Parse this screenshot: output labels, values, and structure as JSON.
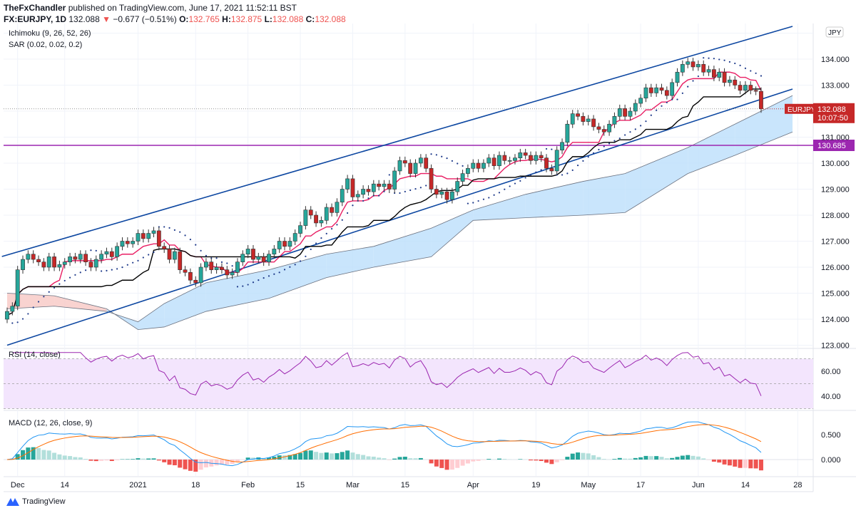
{
  "header": {
    "publisher": "TheFxChandler",
    "published_text": "published on TradingView.com, June 17, 2021 11:52:11 BST",
    "symbol": "FX:EURJPY, 1D",
    "last": "132.088",
    "change": "−0.677 (−0.51%)",
    "o_label": "O:",
    "o": "132.765",
    "h_label": "H:",
    "h": "132.875",
    "l_label": "L:",
    "l": "132.088",
    "c_label": "C:",
    "c": "132.088"
  },
  "indicators": {
    "ichimoku": "Ichimoku (9, 26, 52, 26)",
    "sar": "SAR (0.02, 0.02, 0.2)",
    "rsi": "RSI (14, close)",
    "macd": "MACD (12, 26, close, 9)"
  },
  "footer": {
    "brand": "TradingView"
  },
  "colors": {
    "up": "#26a69a",
    "down": "#c62828",
    "tenkan": "#e91e63",
    "kijun": "#000000",
    "cloud_bull": "#bbdefb",
    "cloud_bear": "#f8c8c4",
    "channel": "#0d47a1",
    "hline": "#9c27b0",
    "sar": "#1e3a8a",
    "rsi": "#9c27b0",
    "rsi_band": "#f3e5fd",
    "macd": "#2196f3",
    "signal": "#ff6d00"
  },
  "chart_data": [
    {
      "type": "candlestick",
      "symbol": "EURJPY",
      "currency_badge": "JPY",
      "start_date": "2020-11-27",
      "interval": "1D",
      "closes": [
        124.3,
        124.5,
        125.9,
        126.3,
        126.5,
        126.3,
        126.2,
        126.0,
        126.4,
        126.0,
        126.1,
        126.2,
        126.4,
        126.3,
        126.5,
        126.2,
        126.0,
        126.3,
        126.5,
        126.6,
        126.4,
        126.8,
        127.0,
        126.9,
        127.0,
        127.3,
        127.1,
        127.3,
        127.4,
        126.8,
        126.7,
        126.3,
        126.6,
        125.9,
        125.8,
        125.5,
        125.4,
        126.0,
        126.2,
        125.9,
        126.0,
        125.9,
        125.7,
        125.8,
        126.2,
        126.5,
        126.7,
        126.3,
        126.4,
        126.2,
        126.5,
        126.7,
        127.0,
        126.8,
        127.0,
        127.3,
        127.6,
        128.2,
        128.0,
        127.7,
        127.8,
        128.3,
        128.1,
        128.5,
        129.0,
        129.4,
        128.7,
        128.8,
        129.0,
        128.9,
        129.2,
        129.1,
        129.2,
        129.0,
        129.7,
        130.1,
        130.0,
        129.6,
        130.0,
        130.2,
        129.8,
        129.0,
        128.8,
        128.9,
        128.6,
        128.9,
        129.3,
        129.6,
        129.8,
        130.0,
        129.8,
        130.0,
        130.2,
        129.9,
        130.3,
        130.1,
        130.1,
        130.2,
        130.4,
        130.3,
        130.1,
        130.3,
        130.2,
        129.8,
        129.7,
        130.5,
        130.8,
        131.5,
        131.9,
        131.8,
        131.6,
        131.7,
        131.4,
        131.3,
        131.2,
        131.5,
        131.8,
        132.1,
        131.8,
        132.0,
        132.3,
        132.5,
        132.9,
        132.7,
        132.9,
        132.8,
        132.6,
        133.1,
        133.5,
        133.8,
        133.9,
        133.7,
        133.8,
        133.5,
        133.6,
        133.3,
        133.5,
        133.1,
        133.2,
        133.0,
        132.8,
        133.0,
        132.8,
        132.765,
        132.088
      ],
      "last_price_label": "132.088",
      "countdown": "10:07:50",
      "y_ticks": [
        "123.000",
        "124.000",
        "125.000",
        "126.000",
        "127.000",
        "128.000",
        "129.000",
        "130.000",
        "131.000",
        "133.000",
        "134.000"
      ],
      "horizontal_line": {
        "price": 130.685,
        "label": "130.685"
      },
      "channel": {
        "upper": [
          {
            "date": "2020-11-26",
            "price": 126.41
          },
          {
            "date": "2021-06-25",
            "price": 135.26
          }
        ],
        "lower": [
          {
            "date": "2020-11-27",
            "price": 123.0
          },
          {
            "date": "2021-06-25",
            "price": 132.85
          }
        ]
      },
      "cloud": {
        "dates": [
          "2020-11-27",
          "2020-12-10",
          "2020-12-24",
          "2021-01-01",
          "2021-01-08",
          "2021-01-20",
          "2021-02-05",
          "2021-02-22",
          "2021-03-05",
          "2021-03-22",
          "2021-04-01",
          "2021-04-15",
          "2021-04-30",
          "2021-05-12",
          "2021-05-28",
          "2021-06-10",
          "2021-06-25"
        ],
        "span_a": [
          124.4,
          124.5,
          124.3,
          123.9,
          124.6,
          125.4,
          125.9,
          126.5,
          126.8,
          127.5,
          128.2,
          128.8,
          129.3,
          129.6,
          130.6,
          131.5,
          132.6
        ],
        "span_b": [
          125.0,
          124.9,
          124.4,
          123.6,
          123.7,
          124.3,
          124.8,
          125.6,
          126.0,
          126.4,
          127.8,
          127.9,
          128.0,
          128.1,
          129.6,
          130.3,
          131.2
        ]
      },
      "x_ticks": [
        {
          "date": "2020-12-01",
          "label": "Dec"
        },
        {
          "date": "2020-12-14",
          "label": "14"
        },
        {
          "date": "2021-01-01",
          "label": "2021"
        },
        {
          "date": "2021-01-18",
          "label": "18"
        },
        {
          "date": "2021-02-01",
          "label": "Feb"
        },
        {
          "date": "2021-02-15",
          "label": "15"
        },
        {
          "date": "2021-03-01",
          "label": "Mar"
        },
        {
          "date": "2021-03-15",
          "label": "15"
        },
        {
          "date": "2021-04-01",
          "label": "Apr"
        },
        {
          "date": "2021-04-19",
          "label": "19"
        },
        {
          "date": "2021-05-03",
          "label": "May"
        },
        {
          "date": "2021-05-17",
          "label": "17"
        },
        {
          "date": "2021-06-01",
          "label": "Jun"
        },
        {
          "date": "2021-06-14",
          "label": "14"
        },
        {
          "date": "2021-06-28",
          "label": "28"
        }
      ]
    },
    {
      "type": "line",
      "name": "RSI",
      "y_ticks": [
        "60.00",
        "40.00"
      ],
      "bands": [
        70,
        50,
        30
      ]
    },
    {
      "type": "bar+line",
      "name": "MACD",
      "y_ticks": [
        "0.500",
        "0.000"
      ]
    }
  ]
}
